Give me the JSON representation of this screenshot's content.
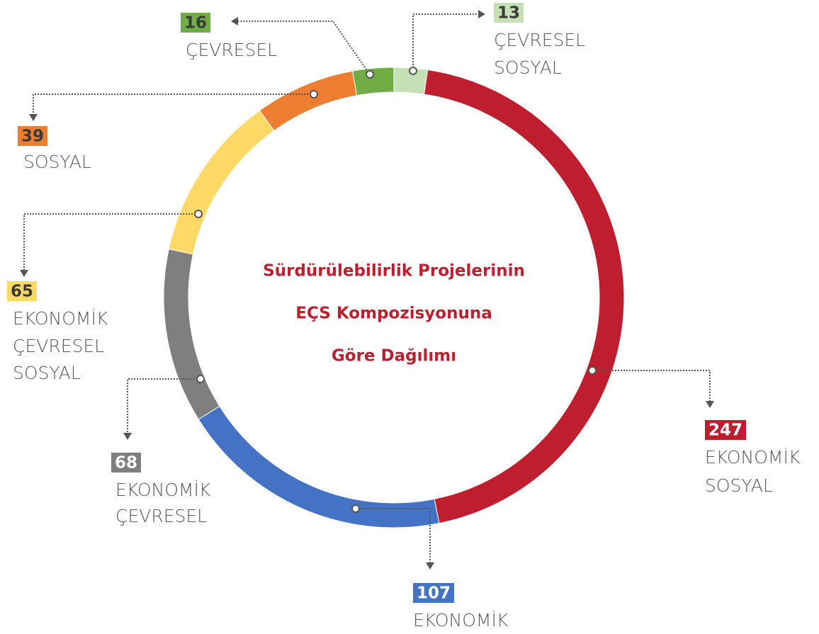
{
  "chart_data": {
    "type": "donut",
    "title": [
      "Sürdürülebilirlik Projelerinin",
      "EÇS Kompozisyonuna",
      "Göre Dağılımı"
    ],
    "categories": [
      [
        "ÇEVRESEL",
        "SOSYAL"
      ],
      [
        "EKONOMİK",
        "SOSYAL"
      ],
      [
        "EKONOMİK"
      ],
      [
        "EKONOMİK",
        "ÇEVRESEL"
      ],
      [
        "EKONOMİK",
        "ÇEVRESEL",
        "SOSYAL"
      ],
      [
        "SOSYAL"
      ],
      [
        "ÇEVRESEL"
      ]
    ],
    "values": [
      13,
      247,
      107,
      68,
      65,
      39,
      16
    ],
    "colors": [
      "#c5e0b4",
      "#be1e2d",
      "#4472c4",
      "#7f7f7f",
      "#ffd966",
      "#ed7d31",
      "#70ad47"
    ]
  }
}
